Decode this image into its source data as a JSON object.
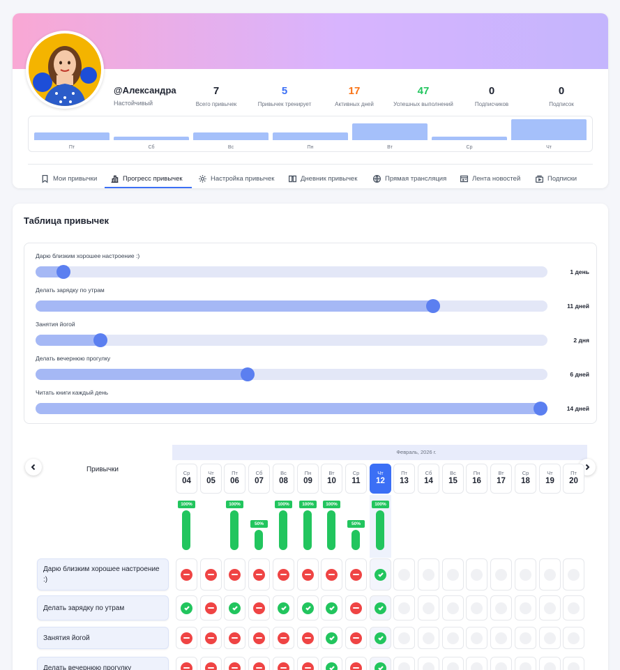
{
  "profile": {
    "username": "@Александра",
    "status": "Настойчивый",
    "stats": [
      {
        "value": "7",
        "label": "Всего привычек",
        "color": "#1e2330"
      },
      {
        "value": "5",
        "label": "Привычек тренирует",
        "color": "#3b6ff5"
      },
      {
        "value": "17",
        "label": "Активных дней",
        "color": "#f97316"
      },
      {
        "value": "47",
        "label": "Успешных выполнений",
        "color": "#22c55e"
      },
      {
        "value": "0",
        "label": "Подписчиков",
        "color": "#1e2330"
      },
      {
        "value": "0",
        "label": "Подписок",
        "color": "#1e2330"
      }
    ],
    "weekly_chart": {
      "days": [
        "Пт",
        "Сб",
        "Вс",
        "Пн",
        "Вт",
        "Ср",
        "Чт"
      ],
      "levels": [
        0.35,
        0.15,
        0.35,
        0.35,
        0.8,
        0.15,
        1.0
      ]
    }
  },
  "tabs": [
    {
      "label": "Мои привычки",
      "icon": "bookmark-icon",
      "active": false
    },
    {
      "label": "Прогресс привычек",
      "icon": "bar-chart-icon",
      "active": true
    },
    {
      "label": "Настройка привычек",
      "icon": "gear-icon",
      "active": false
    },
    {
      "label": "Дневник привычек",
      "icon": "book-icon",
      "active": false
    },
    {
      "label": "Прямая трансляция",
      "icon": "globe-icon",
      "active": false
    },
    {
      "label": "Лента новостей",
      "icon": "newspaper-icon",
      "active": false
    },
    {
      "label": "Подписки",
      "icon": "subscriptions-icon",
      "active": false
    }
  ],
  "habit_table": {
    "title": "Таблица привычек",
    "progress": [
      {
        "name": "Дарю близким хорошее настроение :)",
        "days_text": "1 день",
        "fraction": 0.055
      },
      {
        "name": "Делать зарядку по утрам",
        "days_text": "11 дней",
        "fraction": 0.776
      },
      {
        "name": "Занятия йогой",
        "days_text": "2 дня",
        "fraction": 0.127
      },
      {
        "name": "Делать вечернюю прогулку",
        "days_text": "6 дней",
        "fraction": 0.414
      },
      {
        "name": "Читать книги каждый день",
        "days_text": "14 дней",
        "fraction": 0.986
      }
    ]
  },
  "calendar": {
    "month": "Февраль, 2026 г.",
    "habits_column_title": "Привычки",
    "days": [
      {
        "wd": "Ср",
        "num": "04",
        "pct": "100%",
        "level": 1.0
      },
      {
        "wd": "Чт",
        "num": "05",
        "pct": "",
        "level": 0
      },
      {
        "wd": "Пт",
        "num": "06",
        "pct": "100%",
        "level": 1.0
      },
      {
        "wd": "Сб",
        "num": "07",
        "pct": "50%",
        "level": 0.5
      },
      {
        "wd": "Вс",
        "num": "08",
        "pct": "100%",
        "level": 1.0
      },
      {
        "wd": "Пн",
        "num": "09",
        "pct": "100%",
        "level": 1.0
      },
      {
        "wd": "Вт",
        "num": "10",
        "pct": "100%",
        "level": 1.0
      },
      {
        "wd": "Ср",
        "num": "11",
        "pct": "50%",
        "level": 0.5
      },
      {
        "wd": "Чт",
        "num": "12",
        "pct": "100%",
        "level": 1.0,
        "today": true
      },
      {
        "wd": "Пт",
        "num": "13",
        "pct": "",
        "level": 0
      },
      {
        "wd": "Сб",
        "num": "14",
        "pct": "",
        "level": 0
      },
      {
        "wd": "Вс",
        "num": "15",
        "pct": "",
        "level": 0
      },
      {
        "wd": "Пн",
        "num": "16",
        "pct": "",
        "level": 0
      },
      {
        "wd": "Вт",
        "num": "17",
        "pct": "",
        "level": 0
      },
      {
        "wd": "Ср",
        "num": "18",
        "pct": "",
        "level": 0
      },
      {
        "wd": "Чт",
        "num": "19",
        "pct": "",
        "level": 0
      },
      {
        "wd": "Пт",
        "num": "20",
        "pct": "",
        "level": 0
      }
    ],
    "rows": [
      {
        "habit": "Дарю близким хорошее настроение :)",
        "marks": "xxxxxxxxveeeeeeee"
      },
      {
        "habit": "Делать зарядку по утрам",
        "marks": "vxvxvvvxveeeeeeee"
      },
      {
        "habit": "Занятия йогой",
        "marks": "xxxxxxvxveeeeeeee"
      },
      {
        "habit": "Делать вечернюю прогулку",
        "marks": "xxxxxxvxveeeeeeee"
      }
    ]
  },
  "colors": {
    "accent": "#3b6ff5",
    "success": "#22c55e",
    "fail": "#ef4444",
    "bar": "#a5c0fa"
  }
}
